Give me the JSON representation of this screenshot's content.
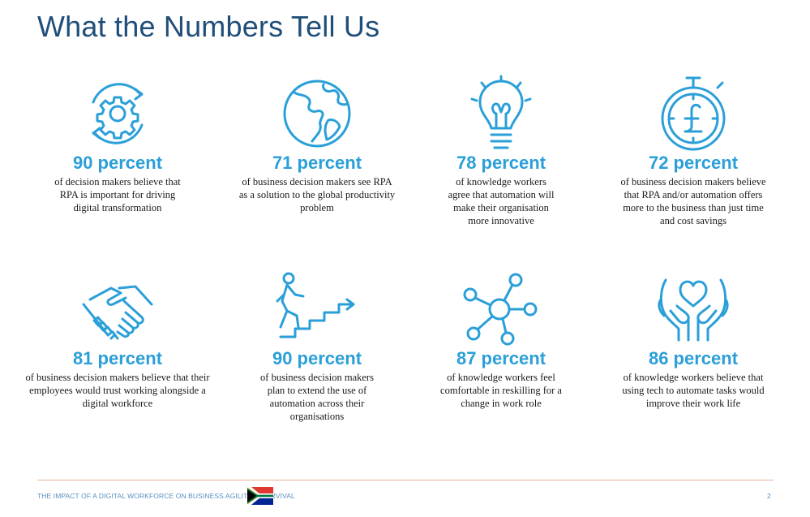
{
  "page": {
    "title": "What the Numbers Tell Us"
  },
  "stats": [
    {
      "icon": "gear-cycle-icon",
      "value": "90 percent",
      "lines": [
        "of decision makers believe that",
        "RPA is important for driving",
        "digital transformation"
      ]
    },
    {
      "icon": "globe-icon",
      "value": "71 percent",
      "lines": [
        "of business decision makers see RPA",
        "as a solution to the global productivity",
        "problem"
      ]
    },
    {
      "icon": "lightbulb-icon",
      "value": "78 percent",
      "lines": [
        "of knowledge workers",
        "agree that automation will",
        "make their organisation",
        "more innovative"
      ]
    },
    {
      "icon": "pound-stopwatch-icon",
      "value": "72 percent",
      "lines": [
        "of business decision makers believe",
        "that RPA and/or automation offers",
        "more to the business than just time",
        "and cost savings"
      ]
    },
    {
      "icon": "handshake-icon",
      "value": "81 percent",
      "lines": [
        "of business decision makers believe that their",
        "employees would trust working alongside a",
        "digital workforce"
      ]
    },
    {
      "icon": "climbing-stairs-icon",
      "value": "90 percent",
      "lines": [
        "of business decision makers",
        "plan to extend the use of",
        "automation across their",
        "organisations"
      ]
    },
    {
      "icon": "network-nodes-icon",
      "value": "87 percent",
      "lines": [
        "of knowledge workers feel",
        "comfortable in reskilling for a",
        "change in work role"
      ]
    },
    {
      "icon": "heart-hands-icon",
      "value": "86 percent",
      "lines": [
        "of knowledge workers believe that",
        "using tech to automate tasks would",
        "improve their work life"
      ]
    }
  ],
  "footer": {
    "text": "THE IMPACT OF A DIGITAL WORKFORCE ON BUSINESS AGILITY & SURVIVAL",
    "flag": "south-africa-flag-icon",
    "page_number": "2"
  },
  "colors": {
    "title": "#1f4e79",
    "accent": "#2a9fd8",
    "footer_text": "#5a8fc0",
    "footer_rule": "#e8b39a"
  }
}
